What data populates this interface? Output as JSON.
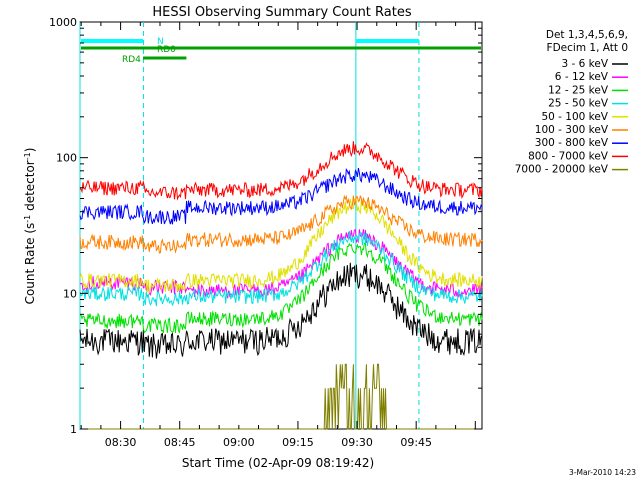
{
  "chart_data": {
    "type": "line",
    "title": "HESSI Observing Summary Count Rates",
    "xlabel": "Start Time (02-Apr-09 08:19:42)",
    "ylabel_main": "Count Rate (s",
    "ylabel_sup1": "-1",
    "ylabel_mid": " detector",
    "ylabel_sup2": "-1",
    "ylabel_end": ")",
    "yscale": "log",
    "ylim": [
      1,
      1000
    ],
    "xlim_minutes": [
      0,
      102
    ],
    "xticks": [
      {
        "label": "08:30",
        "t": 10.3
      },
      {
        "label": "08:45",
        "t": 25.3
      },
      {
        "label": "09:00",
        "t": 40.3
      },
      {
        "label": "09:15",
        "t": 55.3
      },
      {
        "label": "09:30",
        "t": 70.3
      },
      {
        "label": "09:45",
        "t": 85.3
      }
    ],
    "yticks": [
      {
        "label": "1",
        "v": 1
      },
      {
        "label": "10",
        "v": 10
      },
      {
        "label": "100",
        "v": 100
      },
      {
        "label": "1000",
        "v": 1000
      }
    ],
    "legend_header": [
      "Det 1,3,4,5,6,9,",
      "FDecim 1, Att 0"
    ],
    "legend_position": "right, outside plot",
    "series": [
      {
        "name": "3 - 6 keV",
        "color": "#000000",
        "base": 4.5,
        "pre": 4.5,
        "peak": 14
      },
      {
        "name": "6 - 12 keV",
        "color": "#ff00ff",
        "base": 10.5,
        "pre": 12,
        "peak": 27
      },
      {
        "name": "12 - 25 keV",
        "color": "#00e000",
        "base": 6.5,
        "pre": 6.3,
        "peak": 22
      },
      {
        "name": "25 - 50 keV",
        "color": "#00e0e0",
        "base": 9.5,
        "pre": 10,
        "peak": 26
      },
      {
        "name": "50 - 100 keV",
        "color": "#e0e000",
        "base": 12.5,
        "pre": 12.5,
        "peak": 45
      },
      {
        "name": "100 - 300 keV",
        "color": "#ff8000",
        "base": 25,
        "pre": 24,
        "peak": 48
      },
      {
        "name": "300 - 800 keV",
        "color": "#0000ff",
        "base": 43,
        "pre": 40,
        "peak": 75
      },
      {
        "name": "800 - 7000 keV",
        "color": "#ff0000",
        "base": 58,
        "pre": 60,
        "peak": 118
      },
      {
        "name": "7000 - 20000 keV",
        "color": "#808000",
        "base": 0,
        "pre": 0,
        "peak": 3
      }
    ],
    "flag_bars": [
      {
        "label": "N",
        "color": "#00ffff",
        "segments": [
          [
            0,
            16
          ],
          [
            70,
            86
          ]
        ]
      },
      {
        "label": "RD0",
        "color": "#00a000",
        "segments": [
          [
            0,
            102
          ]
        ]
      },
      {
        "label": "RD4",
        "color": "#00a000",
        "segments": [
          [
            16,
            27
          ]
        ]
      }
    ],
    "vertical_markers_minutes": [
      {
        "t": 0,
        "style": "solid"
      },
      {
        "t": 16.1,
        "style": "dashed"
      },
      {
        "t": 70,
        "style": "solid"
      },
      {
        "t": 86,
        "style": "dashed"
      }
    ],
    "timestamp": "3-Mar-2010 14:23"
  }
}
